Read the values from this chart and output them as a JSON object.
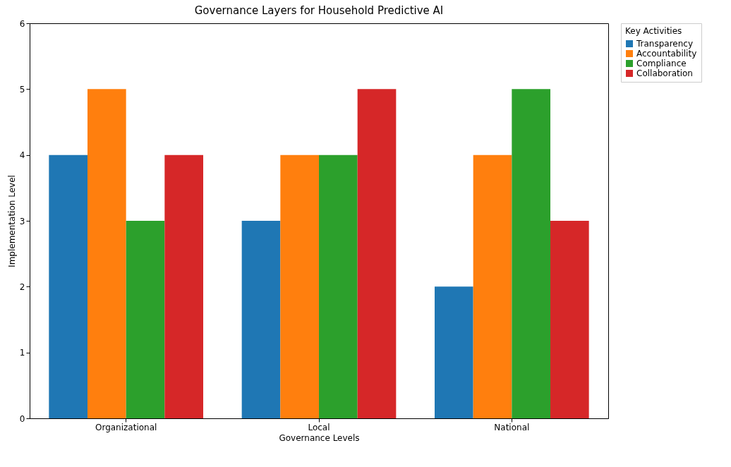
{
  "chart_data": {
    "type": "bar",
    "title": "Governance Layers for Household Predictive AI",
    "xlabel": "Governance Levels",
    "ylabel": "Implementation Level",
    "legend_title": "Key Activities",
    "categories": [
      "Organizational",
      "Local",
      "National"
    ],
    "series": [
      {
        "name": "Transparency",
        "color": "#1f77b4",
        "values": [
          4,
          3,
          2
        ]
      },
      {
        "name": "Accountability",
        "color": "#ff7f0e",
        "values": [
          5,
          4,
          4
        ]
      },
      {
        "name": "Compliance",
        "color": "#2ca02c",
        "values": [
          3,
          4,
          5
        ]
      },
      {
        "name": "Collaboration",
        "color": "#d62728",
        "values": [
          4,
          5,
          3
        ]
      }
    ],
    "ylim": [
      0,
      6
    ],
    "yticks": [
      0,
      1,
      2,
      3,
      4,
      5,
      6
    ],
    "grid": false,
    "legend": "right"
  }
}
